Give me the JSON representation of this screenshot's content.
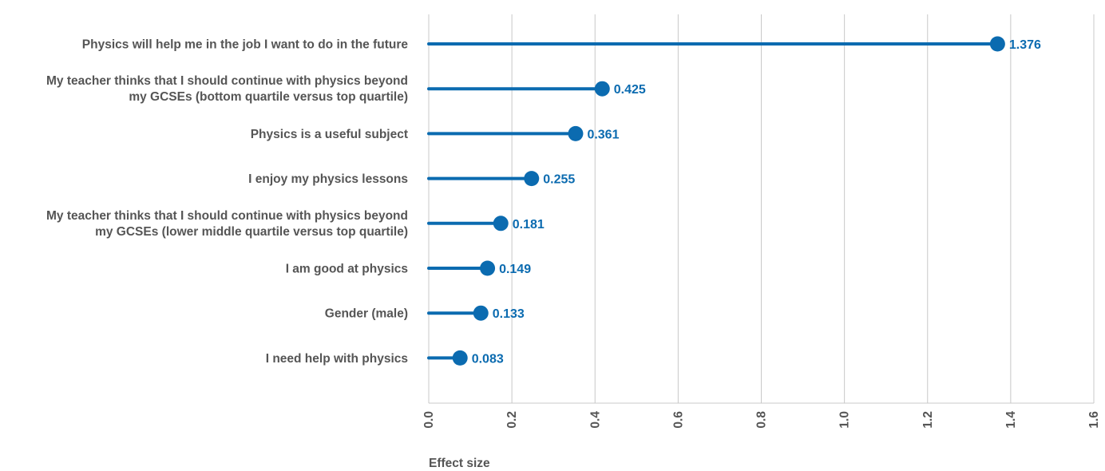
{
  "chart_data": {
    "type": "lollipop",
    "categories": [
      [
        "Physics will help me in the job I want to do in the future"
      ],
      [
        "My teacher thinks that I should continue with physics beyond",
        "my GCSEs (bottom quartile versus top quartile)"
      ],
      [
        "Physics is a useful subject"
      ],
      [
        "I enjoy my physics lessons"
      ],
      [
        "My teacher thinks that I should continue with physics beyond",
        "my GCSEs (lower middle quartile versus top quartile)"
      ],
      [
        "I am good at physics"
      ],
      [
        "Gender (male)"
      ],
      [
        "I need help with physics"
      ]
    ],
    "values": [
      1.376,
      0.425,
      0.361,
      0.255,
      0.181,
      0.149,
      0.133,
      0.083
    ],
    "value_labels": [
      "1.376",
      "0.425",
      "0.361",
      "0.255",
      "0.181",
      "0.149",
      "0.133",
      "0.083"
    ],
    "xlabel": "Effect size",
    "xlim": [
      0,
      1.6
    ],
    "xticks": [
      0.0,
      0.2,
      0.4,
      0.6,
      0.8,
      1.0,
      1.2,
      1.4,
      1.6
    ],
    "xtick_labels": [
      "0.0",
      "0.2",
      "0.4",
      "0.6",
      "0.8",
      "1.0",
      "1.2",
      "1.4",
      "1.6"
    ],
    "grid": true,
    "colors": {
      "series": "#0b6bb0",
      "label": "#0b6bb0",
      "text": "#555555",
      "grid": "#c8c8c8"
    }
  }
}
